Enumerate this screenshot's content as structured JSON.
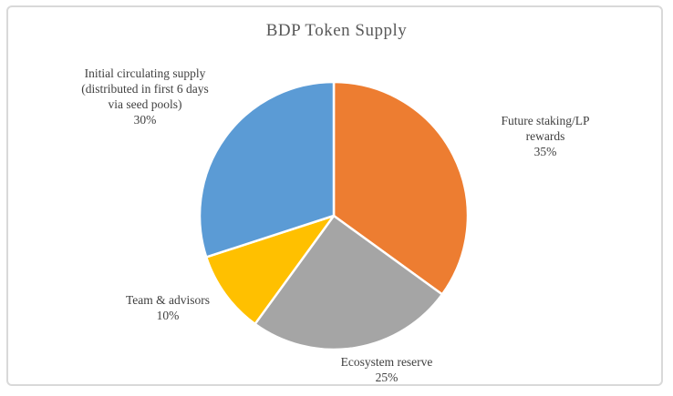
{
  "chart": {
    "title": "BDP Token Supply",
    "frame_border_color": "#d9d9d9",
    "background_color": "#ffffff",
    "title_color": "#595959",
    "label_color": "#404040"
  },
  "chart_data": {
    "type": "pie",
    "title": "BDP Token Supply",
    "legend": "none",
    "start_angle_deg": 0,
    "direction": "clockwise",
    "data_labels": "outside-end: category name + percentage",
    "slices": [
      {
        "id": "future-staking-lp-rewards",
        "label": "Future staking/LP rewards",
        "value": 35,
        "pct": "35%",
        "color": "#ED7D31",
        "data_label": "Future staking/LP\nrewards\n35%"
      },
      {
        "id": "ecosystem-reserve",
        "label": "Ecosystem reserve",
        "value": 25,
        "pct": "25%",
        "color": "#A5A5A5",
        "data_label": "Ecosystem reserve\n25%"
      },
      {
        "id": "team-advisors",
        "label": "Team & advisors",
        "value": 10,
        "pct": "10%",
        "color": "#FFC000",
        "data_label": "Team & advisors\n10%"
      },
      {
        "id": "initial-circulating-supply",
        "label": "Initial circulating supply (distributed in first 6 days via seed pools)",
        "value": 30,
        "pct": "30%",
        "color": "#5B9BD5",
        "data_label": "Initial circulating supply\n(distributed in first 6 days\nvia seed pools)\n30%"
      }
    ]
  }
}
